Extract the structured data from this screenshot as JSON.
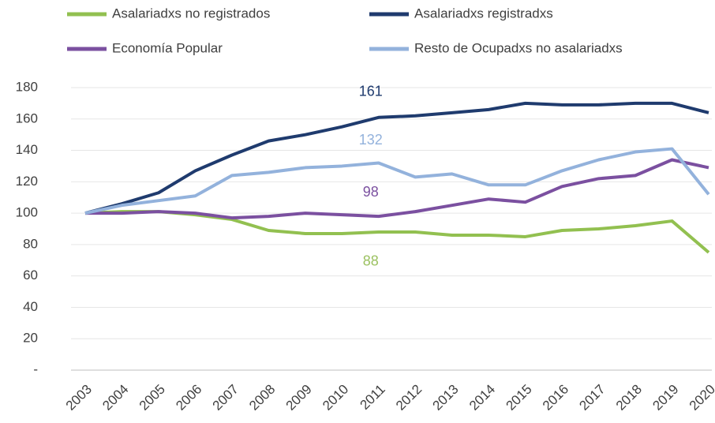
{
  "chart_data": {
    "type": "line",
    "categories": [
      "2003",
      "2004",
      "2005",
      "2006",
      "2007",
      "2008",
      "2009",
      "2010",
      "2011",
      "2012",
      "2013",
      "2014",
      "2015",
      "2016",
      "2017",
      "2018",
      "2019",
      "2020"
    ],
    "series": [
      {
        "name": "Asalariadxs no registrados",
        "color": "#92c050",
        "values": [
          100,
          101,
          101,
          99,
          96,
          89,
          87,
          87,
          88,
          88,
          86,
          86,
          85,
          89,
          90,
          92,
          95,
          75
        ]
      },
      {
        "name": "Asalariadxs registradxs",
        "color": "#1f3b6e",
        "values": [
          100,
          106,
          113,
          127,
          137,
          146,
          150,
          155,
          161,
          162,
          164,
          166,
          170,
          169,
          169,
          170,
          170,
          164
        ]
      },
      {
        "name": "Economía Popular",
        "color": "#7b50a0",
        "values": [
          100,
          100,
          101,
          100,
          97,
          98,
          100,
          99,
          98,
          101,
          105,
          109,
          107,
          117,
          122,
          124,
          134,
          129
        ]
      },
      {
        "name": "Resto de Ocupadxs no asalariadxs",
        "color": "#93b2dc",
        "values": [
          100,
          105,
          108,
          111,
          124,
          126,
          129,
          130,
          132,
          123,
          125,
          118,
          118,
          127,
          134,
          139,
          141,
          112
        ]
      }
    ],
    "ylim": [
      0,
      180
    ],
    "yticks": [
      {
        "value": 0,
        "label": "-"
      },
      20,
      40,
      60,
      80,
      100,
      120,
      140,
      160,
      180
    ],
    "grid": true,
    "legend": "top"
  }
}
